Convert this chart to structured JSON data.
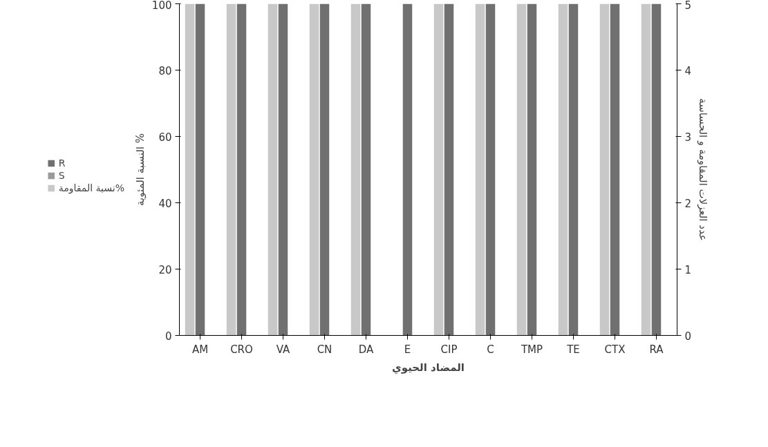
{
  "chart_data": {
    "type": "bar",
    "categories": [
      "AM",
      "CRO",
      "VA",
      "CN",
      "DA",
      "E",
      "CIP",
      "C",
      "TMP",
      "TE",
      "CTX",
      "RA"
    ],
    "series": [
      {
        "name": "R",
        "color": "#707070",
        "axis": "y2",
        "values": [
          5,
          5,
          5,
          5,
          5,
          5,
          5,
          5,
          5,
          5,
          5,
          5
        ]
      },
      {
        "name": "S",
        "color": "#9a9a9a",
        "axis": "y2",
        "values": [
          0,
          0,
          0,
          0,
          0,
          0,
          0,
          0,
          0,
          0,
          0,
          0
        ]
      },
      {
        "name": "نسبة المقاومة%",
        "color": "#c8c8c8",
        "values": [
          100,
          100,
          100,
          100,
          100,
          0,
          100,
          100,
          100,
          100,
          100,
          100
        ]
      }
    ],
    "xlabel": "المضاد الحيوي",
    "ylabel": "النسبة المئوية %",
    "y2label": "عدد العزلات المقاومة و الحساسة",
    "ylim": [
      0,
      100
    ],
    "yticks": [
      0,
      20,
      40,
      60,
      80,
      100
    ],
    "y2lim": [
      0,
      5
    ],
    "y2ticks": [
      0,
      1,
      2,
      3,
      4,
      5
    ],
    "grid": false,
    "legend": "left"
  }
}
